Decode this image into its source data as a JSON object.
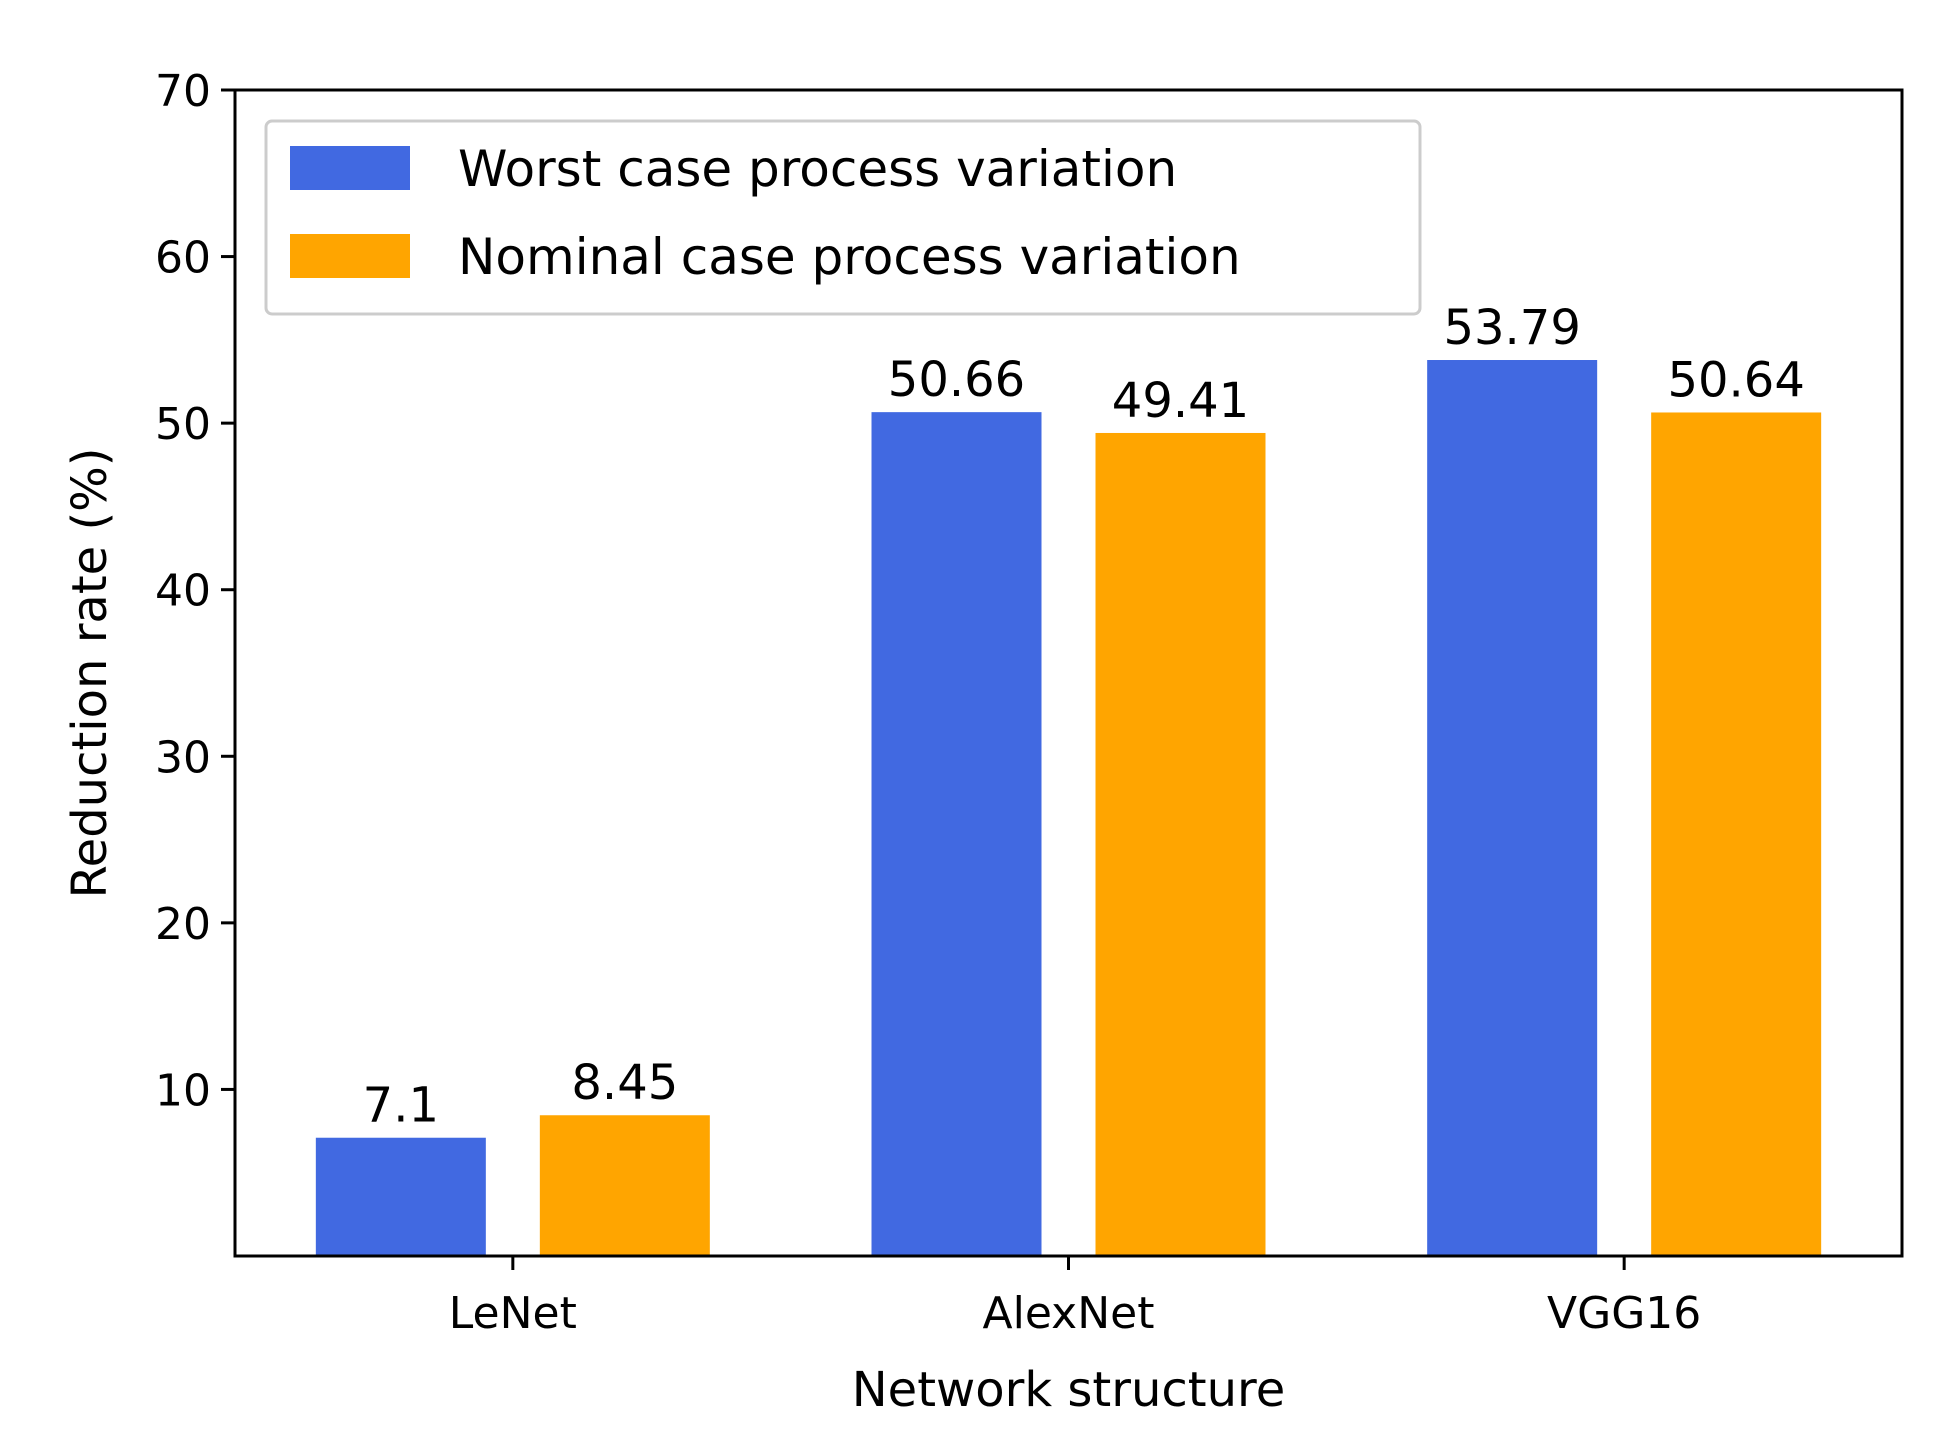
{
  "chart_data": {
    "type": "bar",
    "title": "",
    "xlabel": "Network structure",
    "ylabel": "Reduction rate (%)",
    "categories": [
      "LeNet",
      "AlexNet",
      "VGG16"
    ],
    "series": [
      {
        "name": "Worst case process variation",
        "color": "#4169E1",
        "values": [
          7.1,
          50.66,
          53.79
        ],
        "value_labels": [
          "7.1",
          "50.66",
          "53.79"
        ]
      },
      {
        "name": "Nominal case process variation",
        "color": "#FFA500",
        "values": [
          8.45,
          49.41,
          50.64
        ],
        "value_labels": [
          "8.45",
          "49.41",
          "50.64"
        ]
      }
    ],
    "ylim": [
      0,
      70
    ],
    "yticks": [
      10,
      20,
      30,
      40,
      50,
      60,
      70
    ],
    "ytick_labels": [
      "10",
      "20",
      "30",
      "40",
      "50",
      "60",
      "70"
    ],
    "grid": false,
    "legend_position": "top-left"
  }
}
